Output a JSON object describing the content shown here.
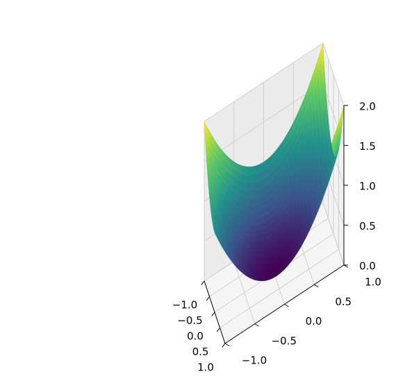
{
  "chart_data": {
    "type": "surface",
    "title": "",
    "function": "z = x^2 + y^2",
    "colormap": "viridis",
    "colormap_stops": [
      "#440154",
      "#3b528b",
      "#21918c",
      "#5ec962",
      "#fde725"
    ],
    "grid": true,
    "x": {
      "label": "",
      "lim": [
        -1.0,
        1.0
      ],
      "ticks": [
        -1.0,
        -0.5,
        0.0,
        0.5,
        1.0
      ],
      "tick_labels": [
        "−1.0",
        "−0.5",
        "0.0",
        "0.5",
        "1.0"
      ]
    },
    "y": {
      "label": "",
      "lim": [
        -1.0,
        1.0
      ],
      "ticks": [
        -1.0,
        -0.5,
        0.0,
        0.5,
        1.0
      ],
      "tick_labels": [
        "−1.0",
        "−0.5",
        "0.0",
        "0.5",
        "1.0"
      ]
    },
    "z": {
      "label": "",
      "lim": [
        0.0,
        2.0
      ],
      "ticks": [
        0.0,
        0.5,
        1.0,
        1.5,
        2.0
      ],
      "tick_labels": [
        "0.0",
        "0.5",
        "1.0",
        "1.5",
        "2.0"
      ]
    }
  }
}
